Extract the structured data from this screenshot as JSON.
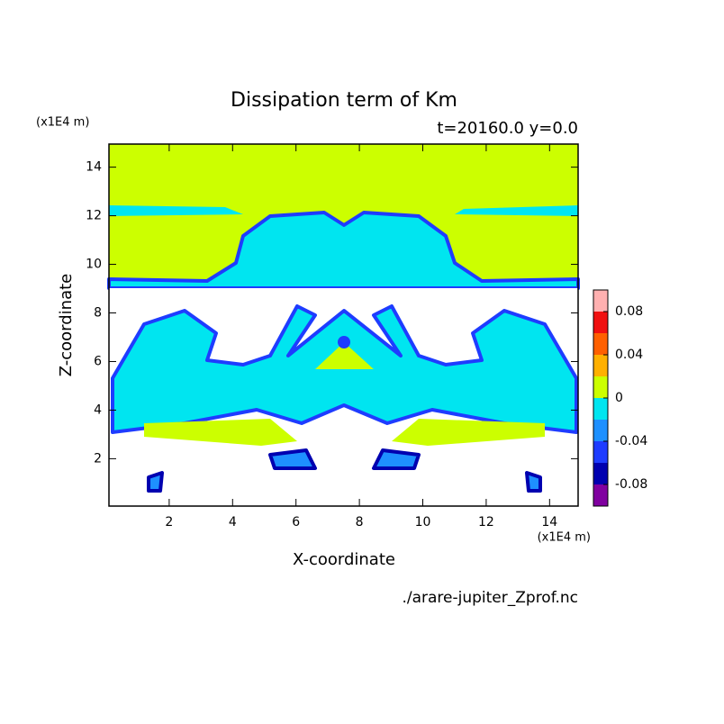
{
  "chart_data": {
    "type": "contour",
    "title": "Dissipation term of Km",
    "subtitle": "t=20160.0 y=0.0",
    "x_label": "X-coordinate",
    "y_label": "Z-coordinate",
    "x_units": "(x1E4 m)",
    "y_units": "(x1E4 m)",
    "source": "./arare-jupiter_Zprof.nc",
    "xlim": [
      0.1,
      14.9
    ],
    "xticks": [
      2,
      4,
      6,
      8,
      10,
      12,
      14
    ],
    "ylim": [
      0.05,
      14.95
    ],
    "yticks": [
      2,
      4,
      6,
      8,
      10,
      12,
      14
    ],
    "levels": [
      -0.1,
      -0.08,
      -0.06,
      -0.04,
      -0.02,
      0,
      0.02,
      0.04,
      0.06,
      0.08,
      0.1
    ],
    "colors": [
      "#8000a0",
      "#0000b0",
      "#1e3cff",
      "#1e90ff",
      "#00e5f0",
      "#ccff00",
      "#ffb000",
      "#ff6000",
      "#f01010",
      "#ffb0b0"
    ],
    "colorbar_ticks": [
      0.08,
      0.04,
      0,
      -0.04,
      -0.08
    ]
  }
}
